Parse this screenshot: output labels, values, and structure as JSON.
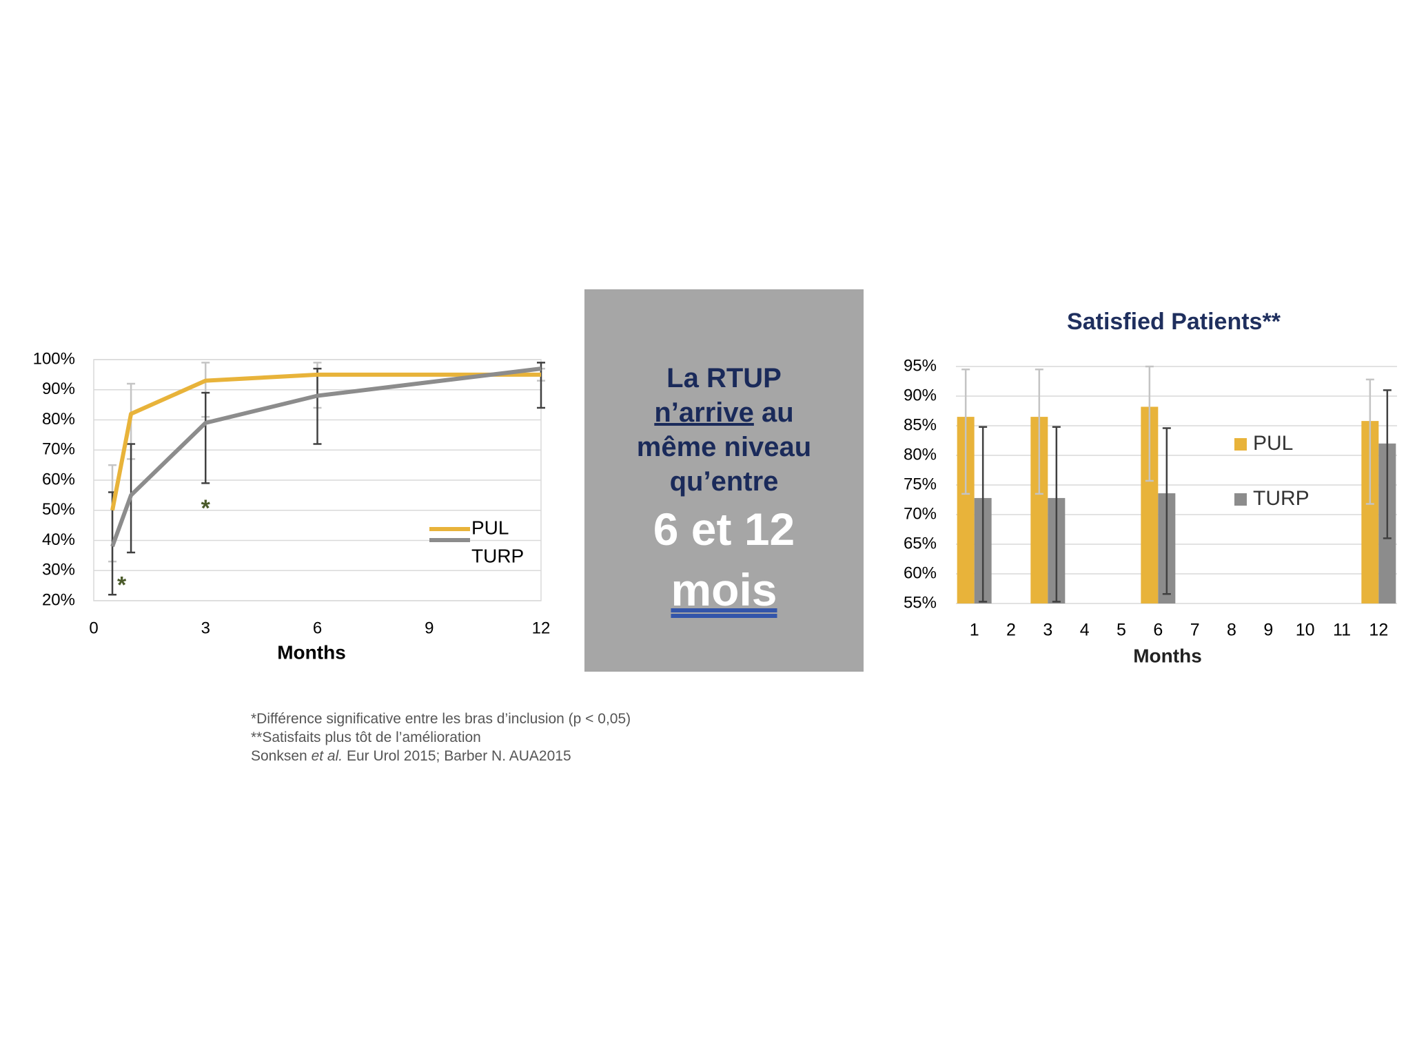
{
  "chart_data": [
    {
      "type": "line",
      "x": [
        0.5,
        1,
        3,
        6,
        12
      ],
      "xlim": [
        0,
        12
      ],
      "xticks": [
        0,
        3,
        6,
        9,
        12
      ],
      "ylim": [
        20,
        100
      ],
      "yticks": [
        {
          "value": 20,
          "label": "20%"
        },
        {
          "value": 30,
          "label": "30%"
        },
        {
          "value": 40,
          "label": "40%"
        },
        {
          "value": 50,
          "label": "50%"
        },
        {
          "value": 60,
          "label": "60%"
        },
        {
          "value": 70,
          "label": "70%"
        },
        {
          "value": 80,
          "label": "80%"
        },
        {
          "value": 90,
          "label": "90%"
        },
        {
          "value": 100,
          "label": "100%"
        }
      ],
      "x_label": "Months",
      "grid": true,
      "series": [
        {
          "name": "PUL",
          "color": "#e8b33a",
          "error_color": "#c4c4c4",
          "values": [
            50,
            82,
            93,
            95,
            95
          ],
          "error_minus": [
            17,
            15,
            12,
            11,
            2
          ],
          "error_plus": [
            15,
            10,
            6,
            4,
            2
          ]
        },
        {
          "name": "TURP",
          "color": "#8c8c8c",
          "error_color": "#404040",
          "values": [
            38,
            55,
            79,
            88,
            97
          ],
          "error_minus": [
            16,
            19,
            20,
            16,
            13
          ],
          "error_plus": [
            18,
            17,
            10,
            9,
            2
          ]
        }
      ],
      "annotations": [
        {
          "text": "*",
          "x": 0.75,
          "y": 26
        },
        {
          "text": "*",
          "x": 3,
          "y": 51.5
        }
      ]
    },
    {
      "type": "bar",
      "title": "Satisfied Patients**",
      "categories": [
        "1",
        "2",
        "3",
        "4",
        "5",
        "6",
        "7",
        "8",
        "9",
        "10",
        "11",
        "12"
      ],
      "ylim": [
        55,
        95
      ],
      "yticks": [
        {
          "value": 55,
          "label": "55%"
        },
        {
          "value": 60,
          "label": "60%"
        },
        {
          "value": 65,
          "label": "65%"
        },
        {
          "value": 70,
          "label": "70%"
        },
        {
          "value": 75,
          "label": "75%"
        },
        {
          "value": 80,
          "label": "80%"
        },
        {
          "value": 85,
          "label": "85%"
        },
        {
          "value": 90,
          "label": "90%"
        },
        {
          "value": 95,
          "label": "95%"
        }
      ],
      "x_label": "Months",
      "grid": true,
      "series": [
        {
          "name": "PUL",
          "color": "#e8b33a",
          "error_color": "#c4c4c4",
          "values": [
            86.5,
            null,
            86.5,
            null,
            null,
            88.2,
            null,
            null,
            null,
            null,
            null,
            85.8
          ],
          "error_minus": [
            13,
            null,
            13,
            null,
            null,
            12.5,
            null,
            null,
            null,
            null,
            null,
            14
          ],
          "error_plus": [
            8,
            null,
            8,
            null,
            null,
            6.8,
            null,
            null,
            null,
            null,
            null,
            7
          ]
        },
        {
          "name": "TURP",
          "color": "#8c8c8c",
          "error_color": "#404040",
          "values": [
            72.8,
            null,
            72.8,
            null,
            null,
            73.6,
            null,
            null,
            null,
            null,
            null,
            82
          ],
          "error_minus": [
            17.5,
            null,
            17.5,
            null,
            null,
            17,
            null,
            null,
            null,
            null,
            null,
            16
          ],
          "error_plus": [
            12,
            null,
            12,
            null,
            null,
            11,
            null,
            null,
            null,
            null,
            null,
            9
          ]
        }
      ]
    }
  ],
  "callout": [
    "La RTUP",
    "n’arrive",
    "au",
    "même niveau",
    "qu’entre",
    "6 et 12",
    "mois"
  ],
  "footnotes": [
    "*Différence significative entre les bras d’inclusion (p < 0,05)",
    "**Satisfaits plus tôt de l’amélioration",
    "Sonksen",
    "et al.",
    "Eur Urol 2015; Barber N. AUA2015"
  ]
}
